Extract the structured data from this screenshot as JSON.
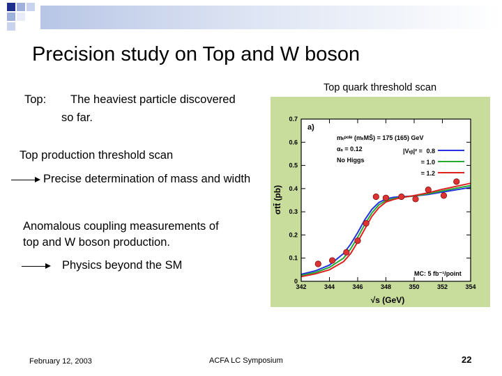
{
  "slide": {
    "title": "Precision study on Top and W boson",
    "bullets": {
      "top_label": "Top:",
      "top_text_1": "The heaviest particle discovered",
      "top_text_2": "so far.",
      "threshold": "Top production threshold scan",
      "precise": "Precise determination of mass and width",
      "anomalous_1": "Anomalous coupling measurements of",
      "anomalous_2": "top and W boson production.",
      "physics": "Physics beyond the SM"
    },
    "figure_caption": "Top quark threshold scan",
    "footer": {
      "date": "February 12, 2003",
      "event": "ACFA LC Symposium",
      "page": "22"
    }
  },
  "chart_data": {
    "type": "line",
    "panel_label": "a)",
    "xlabel": "√s (GeV)",
    "ylabel": "σtt̄ (pb)",
    "xlim": [
      342,
      354
    ],
    "ylim": [
      0,
      0.7
    ],
    "x_ticks": [
      "342",
      "344",
      "346",
      "348",
      "350",
      "352",
      "354"
    ],
    "y_ticks": [
      "0",
      "0.1",
      "0.2",
      "0.3",
      "0.4",
      "0.5",
      "0.6",
      "0.7"
    ],
    "params": {
      "mass": "mₜᵖᵒˡᵉ (mₜMS̄) = 175 (165) GeV",
      "alpha_s": "αₛ = 0.12",
      "higgs": "No Higgs"
    },
    "legend_prefix": "|Vₜᵦ|² =",
    "note": "MC: 5 fb⁻¹/point",
    "series": [
      {
        "name": "0.8",
        "color": "#2233dd",
        "x": [
          342,
          343,
          344,
          345,
          345.5,
          346,
          346.5,
          347,
          347.5,
          348,
          348.5,
          349,
          350,
          351,
          352,
          353,
          354
        ],
        "y": [
          0.03,
          0.045,
          0.07,
          0.12,
          0.16,
          0.21,
          0.265,
          0.31,
          0.34,
          0.355,
          0.362,
          0.365,
          0.368,
          0.375,
          0.385,
          0.395,
          0.405
        ]
      },
      {
        "name": "1.0",
        "color": "#22aa33",
        "x": [
          342,
          343,
          344,
          345,
          345.5,
          346,
          346.5,
          347,
          347.5,
          348,
          348.5,
          349,
          350,
          351,
          352,
          353,
          354
        ],
        "y": [
          0.025,
          0.038,
          0.06,
          0.1,
          0.14,
          0.19,
          0.245,
          0.295,
          0.33,
          0.348,
          0.356,
          0.362,
          0.368,
          0.378,
          0.39,
          0.402,
          0.413
        ]
      },
      {
        "name": "1.2",
        "color": "#dd2222",
        "x": [
          342,
          343,
          344,
          345,
          345.5,
          346,
          346.5,
          347,
          347.5,
          348,
          348.5,
          349,
          350,
          351,
          352,
          353,
          354
        ],
        "y": [
          0.02,
          0.032,
          0.05,
          0.085,
          0.12,
          0.17,
          0.225,
          0.28,
          0.318,
          0.342,
          0.352,
          0.36,
          0.37,
          0.382,
          0.397,
          0.41,
          0.423
        ]
      }
    ],
    "points": {
      "color": "#dd3333",
      "x": [
        343.2,
        344.2,
        345.2,
        346.0,
        346.6,
        347.3,
        348.0,
        349.1,
        350.1,
        351.0,
        352.1,
        353.0
      ],
      "y": [
        0.075,
        0.09,
        0.125,
        0.175,
        0.25,
        0.365,
        0.36,
        0.365,
        0.355,
        0.395,
        0.37,
        0.43
      ]
    }
  }
}
